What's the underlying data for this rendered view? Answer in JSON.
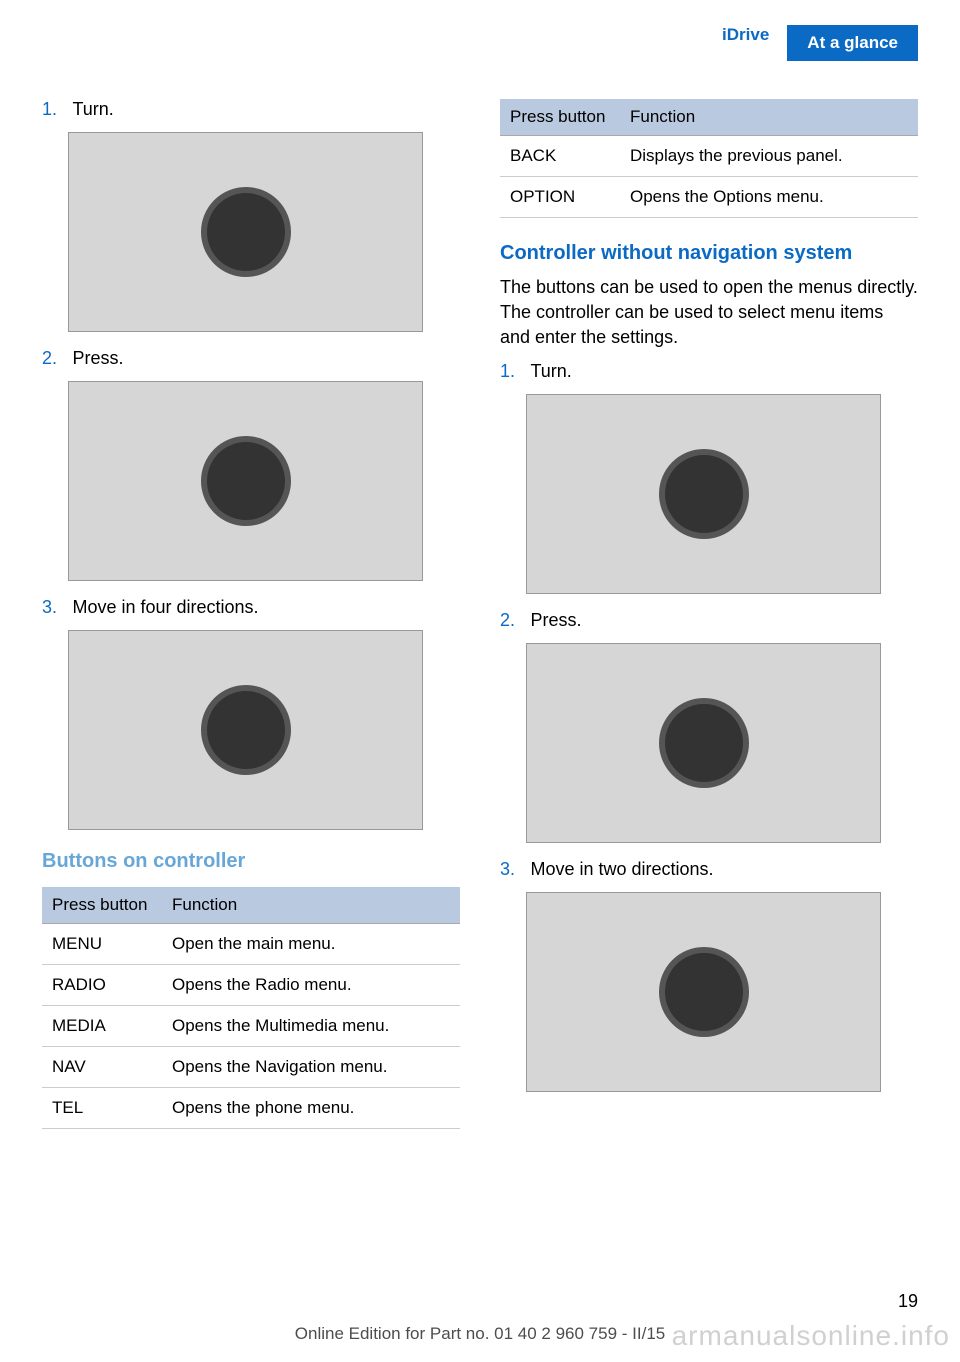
{
  "header": {
    "link": "iDrive",
    "badge": "At a glance"
  },
  "left": {
    "steps": [
      {
        "num": "1.",
        "text": "Turn."
      },
      {
        "num": "2.",
        "text": "Press."
      },
      {
        "num": "3.",
        "text": "Move in four directions."
      }
    ],
    "subheading": "Buttons on controller",
    "table": {
      "th1": "Press button",
      "th2": "Function",
      "rows": [
        {
          "a": "MENU",
          "b": "Open the main menu."
        },
        {
          "a": "RADIO",
          "b": "Opens the Radio menu."
        },
        {
          "a": "MEDIA",
          "b": "Opens the Multimedia menu."
        },
        {
          "a": "NAV",
          "b": "Opens the Navigation menu."
        },
        {
          "a": "TEL",
          "b": "Opens the phone menu."
        }
      ]
    }
  },
  "right": {
    "table": {
      "th1": "Press button",
      "th2": "Function",
      "rows": [
        {
          "a": "BACK",
          "b": "Displays the previous panel."
        },
        {
          "a": "OPTION",
          "b": "Opens the Options menu."
        }
      ]
    },
    "heading": "Controller without navigation system",
    "body": "The buttons can be used to open the menus directly. The controller can be used to select menu items and enter the settings.",
    "steps": [
      {
        "num": "1.",
        "text": "Turn."
      },
      {
        "num": "2.",
        "text": "Press."
      },
      {
        "num": "3.",
        "text": "Move in two directions."
      }
    ]
  },
  "page_num": "19",
  "footer": "Online Edition for Part no. 01 40 2 960 759 - II/15",
  "watermark_bottom": "armanualsonline.info"
}
